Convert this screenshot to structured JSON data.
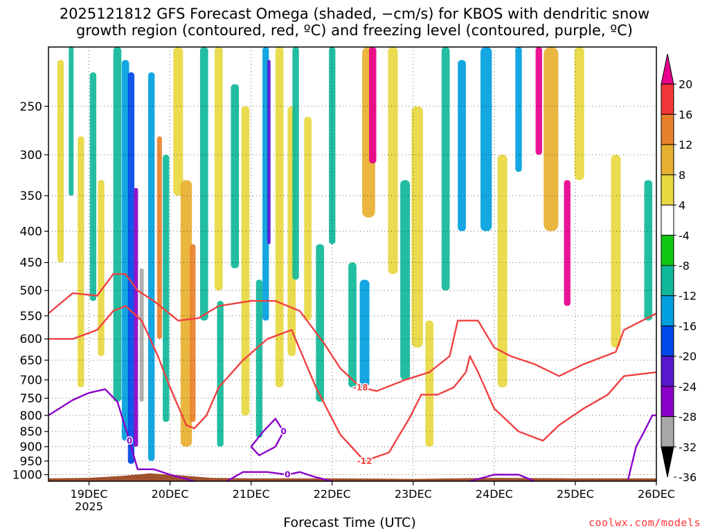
{
  "title_line1": "2025121812 GFS Forecast Omega (shaded, −cm/s) for KBOS with dendritic snow",
  "title_line2": "growth region (contoured, red, ºC) and freezing level (contoured, purple, ºC)",
  "credit": "coolwx.com/models",
  "colors": {
    "snow_contour": "#f04040",
    "freezing_contour": "#8a00c8",
    "terrain": "#a0522d",
    "grid": "#000000"
  },
  "chart_data": {
    "type": "heatmap",
    "xlabel": "Forecast Time (UTC)",
    "ylabel": "",
    "x_ticks": [
      "19DEC",
      "20DEC",
      "21DEC",
      "22DEC",
      "23DEC",
      "24DEC",
      "25DEC",
      "26DEC"
    ],
    "x_year_label": "2025",
    "xlim_days": [
      18.5,
      26.0
    ],
    "y_ticks": [
      250,
      300,
      350,
      400,
      450,
      500,
      550,
      600,
      650,
      700,
      750,
      800,
      850,
      900,
      950,
      1000
    ],
    "ylim_hpa": [
      1025,
      200
    ],
    "y_scale": "log-pressure",
    "colorbar": {
      "label_values": [
        20,
        16,
        12,
        8,
        4,
        -4,
        -8,
        -12,
        -16,
        -20,
        -24,
        -28,
        -32,
        -36
      ],
      "colors": [
        "#e8008c",
        "#f03838",
        "#e8822a",
        "#e8b030",
        "#e8d840",
        "#ffffff",
        "#10c810",
        "#10b89a",
        "#00a0e0",
        "#0048e8",
        "#5818d0",
        "#8a00c8",
        "#a8a8a8",
        "#000000"
      ],
      "extend": "both"
    },
    "shading_zones": [
      {
        "day": 18.65,
        "width": 0.08,
        "p_top": 210,
        "p_bot": 450,
        "value": 6
      },
      {
        "day": 18.78,
        "width": 0.06,
        "p_top": 200,
        "p_bot": 350,
        "value": -8
      },
      {
        "day": 18.9,
        "width": 0.08,
        "p_top": 280,
        "p_bot": 720,
        "value": 6
      },
      {
        "day": 19.05,
        "width": 0.08,
        "p_top": 220,
        "p_bot": 520,
        "value": -8
      },
      {
        "day": 19.15,
        "width": 0.08,
        "p_top": 330,
        "p_bot": 640,
        "value": 6
      },
      {
        "day": 19.35,
        "width": 0.1,
        "p_top": 200,
        "p_bot": 760,
        "value": -8
      },
      {
        "day": 19.45,
        "width": 0.09,
        "p_top": 210,
        "p_bot": 880,
        "value": -12
      },
      {
        "day": 19.52,
        "width": 0.08,
        "p_top": 220,
        "p_bot": 960,
        "value": -16
      },
      {
        "day": 19.58,
        "width": 0.05,
        "p_top": 340,
        "p_bot": 900,
        "value": -24
      },
      {
        "day": 19.65,
        "width": 0.05,
        "p_top": 460,
        "p_bot": 760,
        "value": -28
      },
      {
        "day": 19.77,
        "width": 0.08,
        "p_top": 220,
        "p_bot": 950,
        "value": -12
      },
      {
        "day": 19.87,
        "width": 0.06,
        "p_top": 280,
        "p_bot": 600,
        "value": 14
      },
      {
        "day": 19.95,
        "width": 0.08,
        "p_top": 300,
        "p_bot": 820,
        "value": -8
      },
      {
        "day": 20.1,
        "width": 0.12,
        "p_top": 200,
        "p_bot": 350,
        "value": 6
      },
      {
        "day": 20.2,
        "width": 0.14,
        "p_top": 330,
        "p_bot": 900,
        "value": 10
      },
      {
        "day": 20.28,
        "width": 0.07,
        "p_top": 420,
        "p_bot": 820,
        "value": 14
      },
      {
        "day": 20.42,
        "width": 0.1,
        "p_top": 200,
        "p_bot": 560,
        "value": -8
      },
      {
        "day": 20.6,
        "width": 0.1,
        "p_top": 200,
        "p_bot": 500,
        "value": 6
      },
      {
        "day": 20.62,
        "width": 0.08,
        "p_top": 520,
        "p_bot": 900,
        "value": -8
      },
      {
        "day": 20.8,
        "width": 0.1,
        "p_top": 230,
        "p_bot": 460,
        "value": -8
      },
      {
        "day": 20.93,
        "width": 0.1,
        "p_top": 250,
        "p_bot": 800,
        "value": 6
      },
      {
        "day": 21.1,
        "width": 0.08,
        "p_top": 480,
        "p_bot": 870,
        "value": -8
      },
      {
        "day": 21.18,
        "width": 0.08,
        "p_top": 200,
        "p_bot": 560,
        "value": -12
      },
      {
        "day": 21.22,
        "width": 0.04,
        "p_top": 210,
        "p_bot": 420,
        "value": -20
      },
      {
        "day": 21.35,
        "width": 0.1,
        "p_top": 200,
        "p_bot": 720,
        "value": 6
      },
      {
        "day": 21.5,
        "width": 0.1,
        "p_top": 250,
        "p_bot": 640,
        "value": 6
      },
      {
        "day": 21.55,
        "width": 0.08,
        "p_top": 200,
        "p_bot": 480,
        "value": -8
      },
      {
        "day": 21.7,
        "width": 0.09,
        "p_top": 260,
        "p_bot": 560,
        "value": 6
      },
      {
        "day": 21.85,
        "width": 0.1,
        "p_top": 420,
        "p_bot": 760,
        "value": -8
      },
      {
        "day": 22.0,
        "width": 0.08,
        "p_top": 200,
        "p_bot": 420,
        "value": -8
      },
      {
        "day": 22.25,
        "width": 0.1,
        "p_top": 450,
        "p_bot": 720,
        "value": -8
      },
      {
        "day": 22.4,
        "width": 0.12,
        "p_top": 480,
        "p_bot": 720,
        "value": -12
      },
      {
        "day": 22.45,
        "width": 0.16,
        "p_top": 200,
        "p_bot": 380,
        "value": 10
      },
      {
        "day": 22.5,
        "width": 0.09,
        "p_top": 200,
        "p_bot": 310,
        "value": 20
      },
      {
        "day": 22.75,
        "width": 0.12,
        "p_top": 200,
        "p_bot": 470,
        "value": 6
      },
      {
        "day": 22.9,
        "width": 0.12,
        "p_top": 330,
        "p_bot": 700,
        "value": -8
      },
      {
        "day": 23.05,
        "width": 0.14,
        "p_top": 250,
        "p_bot": 620,
        "value": 6
      },
      {
        "day": 23.2,
        "width": 0.1,
        "p_top": 560,
        "p_bot": 900,
        "value": 6
      },
      {
        "day": 23.4,
        "width": 0.1,
        "p_top": 200,
        "p_bot": 500,
        "value": -8
      },
      {
        "day": 23.6,
        "width": 0.1,
        "p_top": 210,
        "p_bot": 400,
        "value": -12
      },
      {
        "day": 23.9,
        "width": 0.14,
        "p_top": 200,
        "p_bot": 400,
        "value": -12
      },
      {
        "day": 24.1,
        "width": 0.12,
        "p_top": 300,
        "p_bot": 720,
        "value": 8
      },
      {
        "day": 24.3,
        "width": 0.08,
        "p_top": 200,
        "p_bot": 320,
        "value": -12
      },
      {
        "day": 24.55,
        "width": 0.08,
        "p_top": 200,
        "p_bot": 300,
        "value": 20
      },
      {
        "day": 24.7,
        "width": 0.18,
        "p_top": 200,
        "p_bot": 400,
        "value": 12
      },
      {
        "day": 24.9,
        "width": 0.08,
        "p_top": 330,
        "p_bot": 530,
        "value": 20
      },
      {
        "day": 25.05,
        "width": 0.12,
        "p_top": 200,
        "p_bot": 330,
        "value": 6
      },
      {
        "day": 25.5,
        "width": 0.12,
        "p_top": 300,
        "p_bot": 620,
        "value": 6
      },
      {
        "day": 25.9,
        "width": 0.1,
        "p_top": 330,
        "p_bot": 560,
        "value": -8
      }
    ],
    "contours": [
      {
        "name": "-18",
        "color": "snow",
        "label": "-18",
        "points": [
          [
            18.5,
            545
          ],
          [
            18.8,
            505
          ],
          [
            19.1,
            510
          ],
          [
            19.3,
            470
          ],
          [
            19.45,
            470
          ],
          [
            19.6,
            500
          ],
          [
            19.8,
            520
          ],
          [
            20.1,
            560
          ],
          [
            20.35,
            555
          ],
          [
            20.6,
            530
          ],
          [
            21.0,
            520
          ],
          [
            21.3,
            520
          ],
          [
            21.6,
            540
          ],
          [
            21.9,
            610
          ],
          [
            22.1,
            670
          ],
          [
            22.35,
            720
          ],
          [
            22.55,
            730
          ],
          [
            22.9,
            700
          ],
          [
            23.2,
            680
          ],
          [
            23.45,
            640
          ],
          [
            23.55,
            560
          ],
          [
            23.8,
            560
          ],
          [
            24.0,
            620
          ],
          [
            24.2,
            640
          ],
          [
            24.5,
            660
          ],
          [
            24.8,
            690
          ],
          [
            25.1,
            660
          ],
          [
            25.5,
            630
          ],
          [
            25.6,
            580
          ],
          [
            26.0,
            545
          ]
        ]
      },
      {
        "name": "-12",
        "color": "snow",
        "label": "-12",
        "points": [
          [
            18.5,
            600
          ],
          [
            18.8,
            600
          ],
          [
            19.1,
            580
          ],
          [
            19.3,
            540
          ],
          [
            19.45,
            530
          ],
          [
            19.65,
            560
          ],
          [
            19.85,
            640
          ],
          [
            20.0,
            720
          ],
          [
            20.2,
            830
          ],
          [
            20.3,
            840
          ],
          [
            20.45,
            800
          ],
          [
            20.6,
            720
          ],
          [
            20.9,
            650
          ],
          [
            21.2,
            600
          ],
          [
            21.5,
            580
          ],
          [
            21.8,
            720
          ],
          [
            22.1,
            860
          ],
          [
            22.4,
            950
          ],
          [
            22.7,
            920
          ],
          [
            22.95,
            810
          ],
          [
            23.1,
            740
          ],
          [
            23.3,
            740
          ],
          [
            23.5,
            720
          ],
          [
            23.65,
            680
          ],
          [
            23.7,
            640
          ],
          [
            23.8,
            680
          ],
          [
            24.0,
            780
          ],
          [
            24.3,
            850
          ],
          [
            24.6,
            880
          ],
          [
            24.8,
            830
          ],
          [
            25.1,
            780
          ],
          [
            25.4,
            740
          ],
          [
            25.6,
            690
          ],
          [
            26.0,
            680
          ]
        ]
      },
      {
        "name": "0",
        "color": "freezing",
        "label": "0",
        "points": [
          [
            18.5,
            800
          ],
          [
            18.8,
            755
          ],
          [
            19.0,
            735
          ],
          [
            19.2,
            725
          ],
          [
            19.35,
            760
          ],
          [
            19.5,
            880
          ],
          [
            19.6,
            980
          ],
          [
            19.8,
            980
          ],
          [
            20.0,
            1000
          ],
          [
            20.3,
            1025
          ]
        ]
      },
      {
        "name": "0b",
        "color": "freezing",
        "label": "0",
        "points": [
          [
            20.7,
            1025
          ],
          [
            20.9,
            990
          ],
          [
            21.2,
            990
          ],
          [
            21.45,
            1000
          ],
          [
            21.6,
            990
          ],
          [
            21.8,
            1010
          ],
          [
            22.0,
            1025
          ]
        ]
      },
      {
        "name": "0c",
        "color": "freezing",
        "label": "0",
        "points": [
          [
            21.0,
            900
          ],
          [
            21.15,
            850
          ],
          [
            21.3,
            810
          ],
          [
            21.4,
            850
          ],
          [
            21.3,
            900
          ],
          [
            21.1,
            930
          ],
          [
            21.0,
            900
          ]
        ]
      },
      {
        "name": "0d",
        "color": "freezing",
        "label": "",
        "points": [
          [
            23.7,
            1025
          ],
          [
            24.0,
            1000
          ],
          [
            24.3,
            1000
          ],
          [
            24.5,
            1025
          ]
        ]
      },
      {
        "name": "0e",
        "color": "freezing",
        "label": "",
        "points": [
          [
            25.65,
            1020
          ],
          [
            25.75,
            900
          ],
          [
            25.85,
            850
          ],
          [
            25.95,
            800
          ],
          [
            26.0,
            800
          ]
        ]
      }
    ]
  }
}
